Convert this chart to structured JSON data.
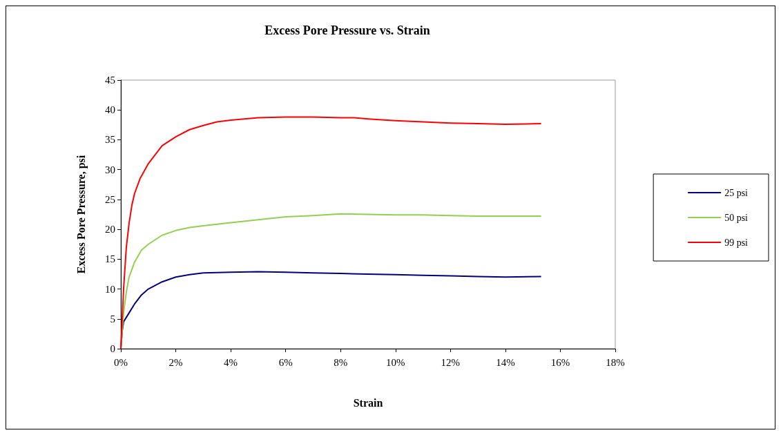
{
  "chart_data": {
    "type": "line",
    "title": "Excess Pore Pressure vs. Strain",
    "xlabel": "Strain",
    "ylabel": "Excess Pore Pressure, psi",
    "xlim": [
      0,
      18
    ],
    "xticks": [
      {
        "value": 0,
        "label": "0%"
      },
      {
        "value": 2,
        "label": "2%"
      },
      {
        "value": 4,
        "label": "4%"
      },
      {
        "value": 6,
        "label": "6%"
      },
      {
        "value": 8,
        "label": "8%"
      },
      {
        "value": 10,
        "label": "10%"
      },
      {
        "value": 12,
        "label": "12%"
      },
      {
        "value": 14,
        "label": "14%"
      },
      {
        "value": 16,
        "label": "16%"
      },
      {
        "value": 18,
        "label": "18%"
      }
    ],
    "ylim": [
      0,
      45
    ],
    "yticks": [
      0,
      5,
      10,
      15,
      20,
      25,
      30,
      35,
      40,
      45
    ],
    "grid": false,
    "legend": "right",
    "marker": "none",
    "line_style": "solid",
    "series": [
      {
        "name": "25 psi",
        "color": "#000080",
        "x": [
          0,
          0.05,
          0.1,
          0.3,
          0.5,
          0.75,
          1,
          1.5,
          2,
          2.5,
          3,
          4,
          5,
          6,
          7,
          8,
          9,
          10,
          11,
          12,
          13,
          14,
          15.3
        ],
        "values": [
          0,
          3,
          4.5,
          6,
          7.5,
          9,
          10,
          11.2,
          12,
          12.4,
          12.7,
          12.8,
          12.9,
          12.8,
          12.7,
          12.6,
          12.5,
          12.4,
          12.3,
          12.2,
          12.1,
          12.0,
          12.1
        ]
      },
      {
        "name": "50 psi",
        "color": "#92d050",
        "x": [
          0,
          0.1,
          0.2,
          0.3,
          0.5,
          0.75,
          1,
          1.5,
          2,
          2.5,
          3,
          4,
          5,
          6,
          7,
          8,
          9,
          10,
          11,
          12,
          13,
          14,
          15.3
        ],
        "values": [
          0,
          6,
          9.5,
          12,
          14.5,
          16.5,
          17.5,
          19,
          19.8,
          20.3,
          20.6,
          21.1,
          21.6,
          22.1,
          22.3,
          22.6,
          22.5,
          22.4,
          22.4,
          22.3,
          22.2,
          22.2,
          22.2
        ]
      },
      {
        "name": "99 psi",
        "color": "#ff0000",
        "x": [
          0,
          0.1,
          0.2,
          0.3,
          0.4,
          0.5,
          0.7,
          1,
          1.5,
          2,
          2.5,
          3,
          3.5,
          4,
          5,
          6,
          7,
          8,
          8.5,
          9,
          10,
          11,
          12,
          13,
          14,
          15.3
        ],
        "values": [
          0,
          10,
          17,
          21,
          24,
          26,
          28.5,
          31,
          34,
          35.5,
          36.7,
          37.4,
          38,
          38.3,
          38.7,
          38.8,
          38.8,
          38.7,
          38.7,
          38.5,
          38.2,
          38,
          37.8,
          37.7,
          37.6,
          37.7
        ]
      }
    ]
  }
}
